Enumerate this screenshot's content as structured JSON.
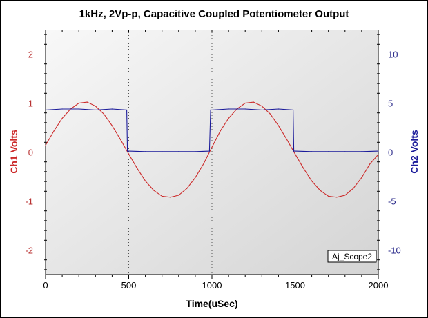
{
  "chart_data": {
    "type": "line",
    "title": "1kHz, 2Vp-p, Capacitive Coupled Potentiometer Output",
    "xlabel": "Time(uSec)",
    "ylabel_left": "Ch1 Volts",
    "ylabel_right": "Ch2 Volts",
    "xlim": [
      0,
      2000
    ],
    "ylim_left": [
      -2.5,
      2.5
    ],
    "ylim_right": [
      -12.5,
      12.5
    ],
    "x_ticks": [
      "0",
      "500",
      "1000",
      "1500",
      "2000"
    ],
    "y_ticks_left": [
      "2",
      "1",
      "0",
      "-1",
      "-2"
    ],
    "y_ticks_right": [
      "10",
      "5",
      "0",
      "-5",
      "-10"
    ],
    "grid": true,
    "legend_label": "Aj_Scope2",
    "colors": {
      "ch1": "#cc2a2a",
      "ch2": "#1a1a9a",
      "left_axis": "#b83030",
      "right_axis": "#2a2a8a"
    },
    "series": [
      {
        "name": "Ch1",
        "axis": "left",
        "x": [
          0,
          50,
          100,
          150,
          200,
          250,
          300,
          350,
          400,
          450,
          500,
          550,
          600,
          650,
          700,
          750,
          800,
          850,
          900,
          950,
          1000,
          1050,
          1100,
          1150,
          1200,
          1250,
          1300,
          1350,
          1400,
          1450,
          1500,
          1550,
          1600,
          1650,
          1700,
          1750,
          1800,
          1850,
          1900,
          1950,
          2000
        ],
        "y": [
          0.14,
          0.43,
          0.69,
          0.88,
          1.0,
          1.02,
          0.94,
          0.78,
          0.54,
          0.26,
          -0.04,
          -0.33,
          -0.59,
          -0.78,
          -0.9,
          -0.92,
          -0.88,
          -0.74,
          -0.52,
          -0.24,
          0.1,
          0.43,
          0.69,
          0.88,
          1.0,
          1.02,
          0.94,
          0.78,
          0.54,
          0.26,
          -0.04,
          -0.33,
          -0.59,
          -0.78,
          -0.9,
          -0.92,
          -0.88,
          -0.74,
          -0.52,
          -0.24,
          -0.05
        ]
      },
      {
        "name": "Ch2",
        "axis": "right",
        "x": [
          0,
          100,
          200,
          300,
          400,
          488,
          492,
          500,
          600,
          700,
          800,
          900,
          985,
          992,
          1000,
          1100,
          1200,
          1300,
          1400,
          1488,
          1492,
          1500,
          1600,
          1700,
          1800,
          1900,
          2000
        ],
        "y": [
          4.3,
          4.4,
          4.4,
          4.3,
          4.4,
          4.3,
          0.1,
          0.1,
          0.05,
          0.05,
          0.05,
          0.05,
          0.1,
          4.3,
          4.3,
          4.4,
          4.4,
          4.3,
          4.4,
          4.3,
          0.1,
          0.1,
          0.05,
          0.05,
          0.05,
          0.05,
          0.1
        ]
      }
    ]
  }
}
